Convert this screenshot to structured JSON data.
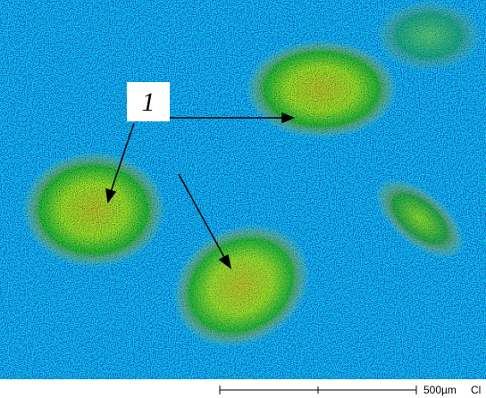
{
  "label": "1",
  "scale_bar": {
    "length": "500µm",
    "element": "Cl"
  }
}
